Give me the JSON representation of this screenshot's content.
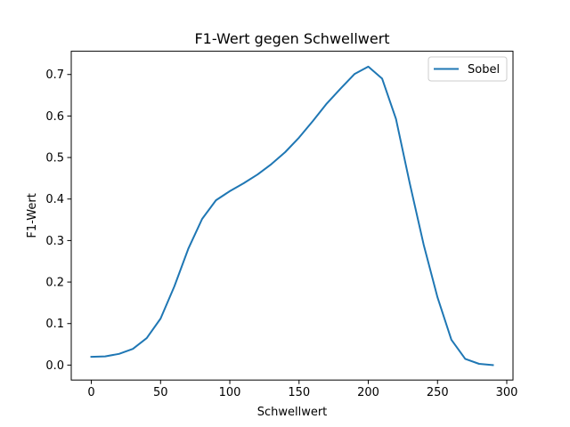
{
  "chart_data": {
    "type": "line",
    "title": "F1-Wert gegen Schwellwert",
    "xlabel": "Schwellwert",
    "ylabel": "F1-Wert",
    "xlim": [
      -14.5,
      304.5
    ],
    "ylim": [
      -0.036,
      0.756
    ],
    "xticks": [
      0,
      50,
      100,
      150,
      200,
      250,
      300
    ],
    "yticks": [
      0.0,
      0.1,
      0.2,
      0.3,
      0.4,
      0.5,
      0.6,
      0.7
    ],
    "xtick_labels": [
      "0",
      "50",
      "100",
      "150",
      "200",
      "250",
      "300"
    ],
    "ytick_labels": [
      "0.0",
      "0.1",
      "0.2",
      "0.3",
      "0.4",
      "0.5",
      "0.6",
      "0.7"
    ],
    "grid": false,
    "legend_position": "top-right",
    "series": [
      {
        "name": "Sobel",
        "color": "#1f77b4",
        "x": [
          0,
          10,
          20,
          30,
          40,
          50,
          60,
          70,
          80,
          90,
          100,
          110,
          120,
          130,
          140,
          150,
          160,
          170,
          180,
          190,
          200,
          210,
          220,
          230,
          240,
          250,
          260,
          270,
          280,
          290
        ],
        "y": [
          0.02,
          0.021,
          0.027,
          0.039,
          0.065,
          0.112,
          0.19,
          0.28,
          0.352,
          0.397,
          0.419,
          0.438,
          0.459,
          0.484,
          0.513,
          0.548,
          0.588,
          0.63,
          0.666,
          0.701,
          0.719,
          0.69,
          0.593,
          0.437,
          0.29,
          0.163,
          0.061,
          0.015,
          0.003,
          0.0
        ]
      }
    ]
  }
}
